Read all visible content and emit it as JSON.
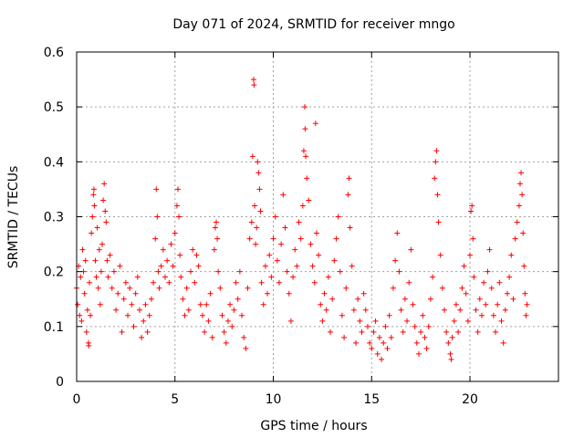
{
  "chart_data": {
    "type": "scatter",
    "title": "Day 071 of 2024, SRMTID for receiver mngo",
    "xlabel": "GPS time / hours",
    "ylabel": "SRMTID / TECUs",
    "xlim": [
      0,
      24.5
    ],
    "ylim": [
      0,
      0.6
    ],
    "xticks": [
      0,
      5,
      10,
      15,
      20
    ],
    "yticks": [
      0,
      0.1,
      0.2,
      0.3,
      0.4,
      0.5,
      0.6
    ],
    "ytick_labels": [
      "0",
      "0.1",
      "0.2",
      "0.3",
      "0.4",
      "0.5",
      "0.6"
    ],
    "grid": true,
    "marker": "+",
    "color": "#ff0000",
    "series": [
      {
        "name": "SRMTID",
        "points": [
          [
            0.0,
            0.17
          ],
          [
            0.05,
            0.14
          ],
          [
            0.1,
            0.21
          ],
          [
            0.15,
            0.12
          ],
          [
            0.2,
            0.19
          ],
          [
            0.25,
            0.11
          ],
          [
            0.3,
            0.24
          ],
          [
            0.35,
            0.2
          ],
          [
            0.4,
            0.16
          ],
          [
            0.45,
            0.22
          ],
          [
            0.5,
            0.09
          ],
          [
            0.55,
            0.13
          ],
          [
            0.6,
            0.07
          ],
          [
            0.62,
            0.065
          ],
          [
            0.65,
            0.18
          ],
          [
            0.7,
            0.12
          ],
          [
            0.75,
            0.27
          ],
          [
            0.8,
            0.3
          ],
          [
            0.85,
            0.34
          ],
          [
            0.88,
            0.35
          ],
          [
            0.9,
            0.32
          ],
          [
            0.95,
            0.22
          ],
          [
            1.0,
            0.19
          ],
          [
            1.05,
            0.28
          ],
          [
            1.1,
            0.17
          ],
          [
            1.15,
            0.24
          ],
          [
            1.2,
            0.14
          ],
          [
            1.25,
            0.2
          ],
          [
            1.3,
            0.25
          ],
          [
            1.35,
            0.33
          ],
          [
            1.4,
            0.36
          ],
          [
            1.45,
            0.31
          ],
          [
            1.5,
            0.29
          ],
          [
            1.55,
            0.22
          ],
          [
            1.6,
            0.19
          ],
          [
            1.7,
            0.23
          ],
          [
            1.8,
            0.17
          ],
          [
            1.9,
            0.2
          ],
          [
            2.0,
            0.13
          ],
          [
            2.1,
            0.16
          ],
          [
            2.2,
            0.21
          ],
          [
            2.3,
            0.09
          ],
          [
            2.4,
            0.15
          ],
          [
            2.5,
            0.18
          ],
          [
            2.6,
            0.12
          ],
          [
            2.7,
            0.17
          ],
          [
            2.8,
            0.14
          ],
          [
            2.9,
            0.1
          ],
          [
            3.0,
            0.16
          ],
          [
            3.1,
            0.19
          ],
          [
            3.2,
            0.13
          ],
          [
            3.3,
            0.08
          ],
          [
            3.4,
            0.11
          ],
          [
            3.5,
            0.14
          ],
          [
            3.6,
            0.09
          ],
          [
            3.7,
            0.12
          ],
          [
            3.8,
            0.15
          ],
          [
            3.9,
            0.18
          ],
          [
            4.0,
            0.26
          ],
          [
            4.05,
            0.35
          ],
          [
            4.1,
            0.3
          ],
          [
            4.15,
            0.2
          ],
          [
            4.2,
            0.17
          ],
          [
            4.3,
            0.21
          ],
          [
            4.4,
            0.24
          ],
          [
            4.5,
            0.19
          ],
          [
            4.6,
            0.22
          ],
          [
            4.7,
            0.18
          ],
          [
            4.8,
            0.25
          ],
          [
            4.9,
            0.21
          ],
          [
            5.0,
            0.27
          ],
          [
            5.1,
            0.32
          ],
          [
            5.15,
            0.35
          ],
          [
            5.2,
            0.3
          ],
          [
            5.25,
            0.23
          ],
          [
            5.3,
            0.19
          ],
          [
            5.4,
            0.15
          ],
          [
            5.5,
            0.12
          ],
          [
            5.6,
            0.17
          ],
          [
            5.7,
            0.13
          ],
          [
            5.8,
            0.2
          ],
          [
            5.9,
            0.24
          ],
          [
            6.0,
            0.18
          ],
          [
            6.1,
            0.23
          ],
          [
            6.2,
            0.21
          ],
          [
            6.3,
            0.14
          ],
          [
            6.4,
            0.12
          ],
          [
            6.5,
            0.09
          ],
          [
            6.6,
            0.14
          ],
          [
            6.7,
            0.11
          ],
          [
            6.8,
            0.16
          ],
          [
            6.9,
            0.08
          ],
          [
            7.0,
            0.24
          ],
          [
            7.05,
            0.28
          ],
          [
            7.1,
            0.29
          ],
          [
            7.15,
            0.26
          ],
          [
            7.2,
            0.2
          ],
          [
            7.3,
            0.17
          ],
          [
            7.4,
            0.12
          ],
          [
            7.5,
            0.09
          ],
          [
            7.6,
            0.07
          ],
          [
            7.7,
            0.11
          ],
          [
            7.8,
            0.14
          ],
          [
            7.9,
            0.1
          ],
          [
            8.0,
            0.13
          ],
          [
            8.1,
            0.18
          ],
          [
            8.2,
            0.15
          ],
          [
            8.3,
            0.2
          ],
          [
            8.4,
            0.12
          ],
          [
            8.5,
            0.08
          ],
          [
            8.6,
            0.06
          ],
          [
            8.7,
            0.17
          ],
          [
            8.8,
            0.26
          ],
          [
            8.9,
            0.29
          ],
          [
            8.95,
            0.41
          ],
          [
            9.0,
            0.55
          ],
          [
            9.02,
            0.54
          ],
          [
            9.05,
            0.32
          ],
          [
            9.1,
            0.25
          ],
          [
            9.15,
            0.28
          ],
          [
            9.2,
            0.4
          ],
          [
            9.25,
            0.38
          ],
          [
            9.3,
            0.35
          ],
          [
            9.35,
            0.31
          ],
          [
            9.4,
            0.18
          ],
          [
            9.5,
            0.14
          ],
          [
            9.6,
            0.21
          ],
          [
            9.7,
            0.16
          ],
          [
            9.8,
            0.23
          ],
          [
            9.9,
            0.19
          ],
          [
            10.0,
            0.26
          ],
          [
            10.1,
            0.3
          ],
          [
            10.2,
            0.22
          ],
          [
            10.3,
            0.18
          ],
          [
            10.4,
            0.25
          ],
          [
            10.5,
            0.34
          ],
          [
            10.6,
            0.28
          ],
          [
            10.7,
            0.2
          ],
          [
            10.8,
            0.16
          ],
          [
            10.9,
            0.11
          ],
          [
            11.0,
            0.19
          ],
          [
            11.1,
            0.24
          ],
          [
            11.2,
            0.21
          ],
          [
            11.3,
            0.29
          ],
          [
            11.4,
            0.26
          ],
          [
            11.5,
            0.32
          ],
          [
            11.55,
            0.42
          ],
          [
            11.6,
            0.5
          ],
          [
            11.62,
            0.46
          ],
          [
            11.65,
            0.41
          ],
          [
            11.7,
            0.37
          ],
          [
            11.8,
            0.33
          ],
          [
            11.9,
            0.25
          ],
          [
            12.0,
            0.21
          ],
          [
            12.1,
            0.18
          ],
          [
            12.15,
            0.47
          ],
          [
            12.2,
            0.27
          ],
          [
            12.3,
            0.23
          ],
          [
            12.4,
            0.14
          ],
          [
            12.5,
            0.11
          ],
          [
            12.6,
            0.16
          ],
          [
            12.7,
            0.13
          ],
          [
            12.8,
            0.19
          ],
          [
            12.9,
            0.09
          ],
          [
            13.0,
            0.15
          ],
          [
            13.1,
            0.22
          ],
          [
            13.2,
            0.26
          ],
          [
            13.3,
            0.3
          ],
          [
            13.4,
            0.2
          ],
          [
            13.5,
            0.12
          ],
          [
            13.6,
            0.08
          ],
          [
            13.7,
            0.17
          ],
          [
            13.8,
            0.34
          ],
          [
            13.85,
            0.37
          ],
          [
            13.9,
            0.28
          ],
          [
            14.0,
            0.21
          ],
          [
            14.1,
            0.13
          ],
          [
            14.2,
            0.07
          ],
          [
            14.3,
            0.15
          ],
          [
            14.4,
            0.11
          ],
          [
            14.5,
            0.09
          ],
          [
            14.6,
            0.16
          ],
          [
            14.7,
            0.13
          ],
          [
            14.8,
            0.1
          ],
          [
            14.9,
            0.07
          ],
          [
            15.0,
            0.06
          ],
          [
            15.1,
            0.09
          ],
          [
            15.2,
            0.11
          ],
          [
            15.3,
            0.05
          ],
          [
            15.4,
            0.08
          ],
          [
            15.5,
            0.04
          ],
          [
            15.6,
            0.07
          ],
          [
            15.7,
            0.1
          ],
          [
            15.8,
            0.06
          ],
          [
            15.9,
            0.12
          ],
          [
            16.0,
            0.08
          ],
          [
            16.1,
            0.17
          ],
          [
            16.2,
            0.22
          ],
          [
            16.3,
            0.27
          ],
          [
            16.4,
            0.2
          ],
          [
            16.5,
            0.13
          ],
          [
            16.6,
            0.09
          ],
          [
            16.7,
            0.15
          ],
          [
            16.8,
            0.11
          ],
          [
            16.9,
            0.18
          ],
          [
            17.0,
            0.24
          ],
          [
            17.1,
            0.14
          ],
          [
            17.2,
            0.1
          ],
          [
            17.3,
            0.07
          ],
          [
            17.4,
            0.05
          ],
          [
            17.5,
            0.09
          ],
          [
            17.6,
            0.12
          ],
          [
            17.7,
            0.08
          ],
          [
            17.8,
            0.06
          ],
          [
            17.9,
            0.1
          ],
          [
            18.0,
            0.15
          ],
          [
            18.1,
            0.19
          ],
          [
            18.2,
            0.37
          ],
          [
            18.25,
            0.4
          ],
          [
            18.3,
            0.42
          ],
          [
            18.35,
            0.34
          ],
          [
            18.4,
            0.29
          ],
          [
            18.5,
            0.23
          ],
          [
            18.6,
            0.17
          ],
          [
            18.7,
            0.13
          ],
          [
            18.8,
            0.09
          ],
          [
            18.9,
            0.07
          ],
          [
            19.0,
            0.05
          ],
          [
            19.05,
            0.04
          ],
          [
            19.1,
            0.08
          ],
          [
            19.2,
            0.11
          ],
          [
            19.3,
            0.14
          ],
          [
            19.4,
            0.09
          ],
          [
            19.5,
            0.13
          ],
          [
            19.6,
            0.17
          ],
          [
            19.7,
            0.21
          ],
          [
            19.8,
            0.16
          ],
          [
            19.9,
            0.11
          ],
          [
            20.0,
            0.23
          ],
          [
            20.05,
            0.31
          ],
          [
            20.1,
            0.32
          ],
          [
            20.15,
            0.26
          ],
          [
            20.2,
            0.19
          ],
          [
            20.3,
            0.13
          ],
          [
            20.4,
            0.09
          ],
          [
            20.5,
            0.15
          ],
          [
            20.6,
            0.12
          ],
          [
            20.7,
            0.18
          ],
          [
            20.8,
            0.14
          ],
          [
            20.9,
            0.2
          ],
          [
            21.0,
            0.24
          ],
          [
            21.1,
            0.17
          ],
          [
            21.2,
            0.12
          ],
          [
            21.3,
            0.09
          ],
          [
            21.4,
            0.14
          ],
          [
            21.5,
            0.18
          ],
          [
            21.6,
            0.11
          ],
          [
            21.7,
            0.07
          ],
          [
            21.8,
            0.13
          ],
          [
            21.9,
            0.16
          ],
          [
            22.0,
            0.19
          ],
          [
            22.1,
            0.23
          ],
          [
            22.2,
            0.15
          ],
          [
            22.3,
            0.26
          ],
          [
            22.4,
            0.29
          ],
          [
            22.5,
            0.32
          ],
          [
            22.55,
            0.36
          ],
          [
            22.6,
            0.38
          ],
          [
            22.65,
            0.34
          ],
          [
            22.7,
            0.27
          ],
          [
            22.75,
            0.21
          ],
          [
            22.8,
            0.16
          ],
          [
            22.85,
            0.12
          ],
          [
            22.9,
            0.14
          ]
        ]
      }
    ]
  }
}
